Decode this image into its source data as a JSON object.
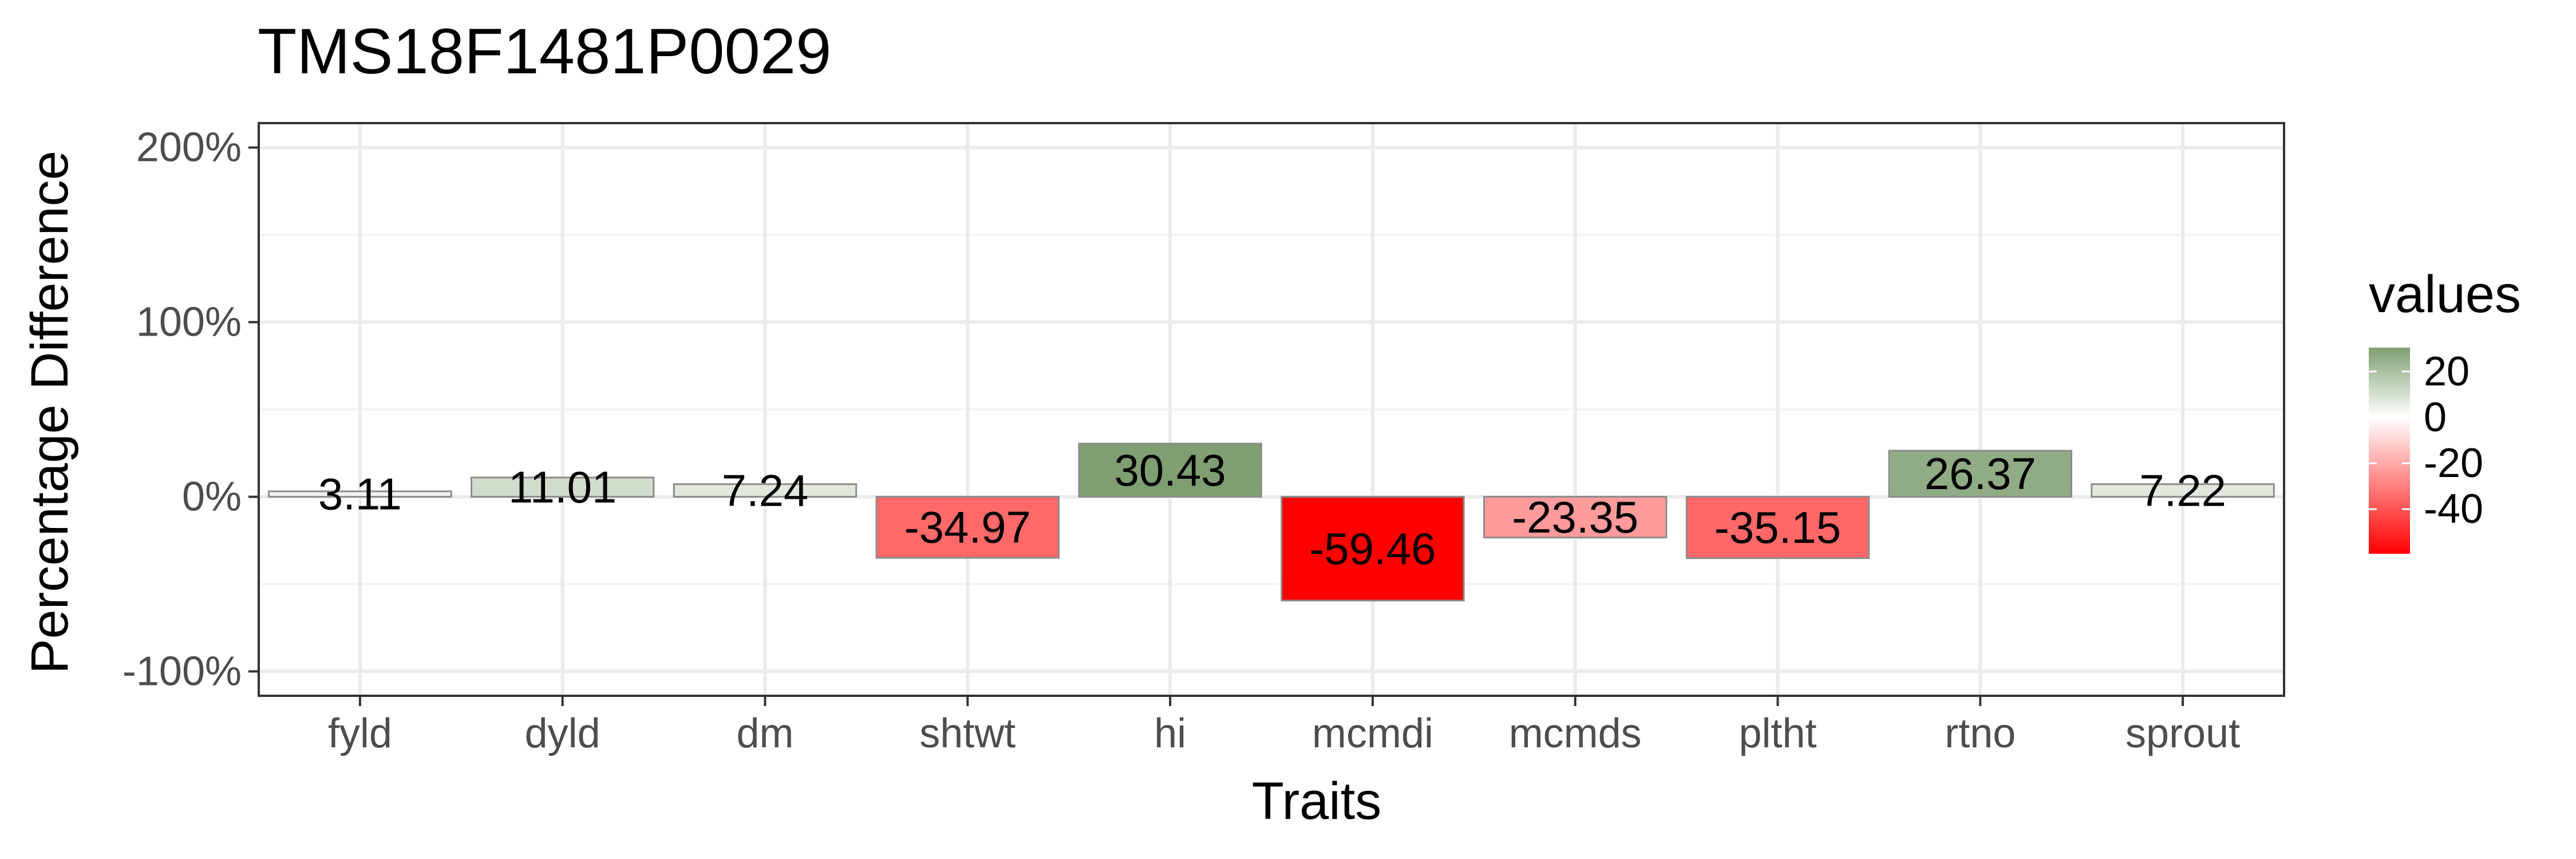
{
  "chart_data": {
    "type": "bar",
    "title": "TMS18F1481P0029",
    "xlabel": "Traits",
    "ylabel": "Percentage Difference",
    "categories": [
      "fyld",
      "dyld",
      "dm",
      "shtwt",
      "hi",
      "mcmdi",
      "mcmds",
      "pltht",
      "rtno",
      "sprout"
    ],
    "values": [
      3.11,
      11.01,
      7.24,
      -34.97,
      30.43,
      -59.46,
      -23.35,
      -35.15,
      26.37,
      7.22
    ],
    "value_labels": [
      "3.11",
      "11.01",
      "7.24",
      "-34.97",
      "30.43",
      "-59.46",
      "-23.35",
      "-35.15",
      "26.37",
      "7.22"
    ],
    "ylim": [
      -114,
      214
    ],
    "yticks": [
      -100,
      0,
      100,
      200
    ],
    "ytick_labels": [
      "-100%",
      "0%",
      "100%",
      "200%"
    ],
    "grid": true,
    "legend": {
      "title": "values",
      "placement": "right",
      "breaks": [
        20,
        0,
        -20,
        -40
      ],
      "labels": [
        "20",
        "0",
        "-20",
        "-40"
      ],
      "range": [
        -59.46,
        30.43
      ]
    },
    "colors": {
      "high": "#7f9f72",
      "mid": "#ffffff",
      "low": "#ff0000",
      "bar_border": "#8c8c8c",
      "grid_major": "#ebebeb",
      "grid_minor": "#f2f2f2",
      "panel_border": "#333333"
    }
  }
}
